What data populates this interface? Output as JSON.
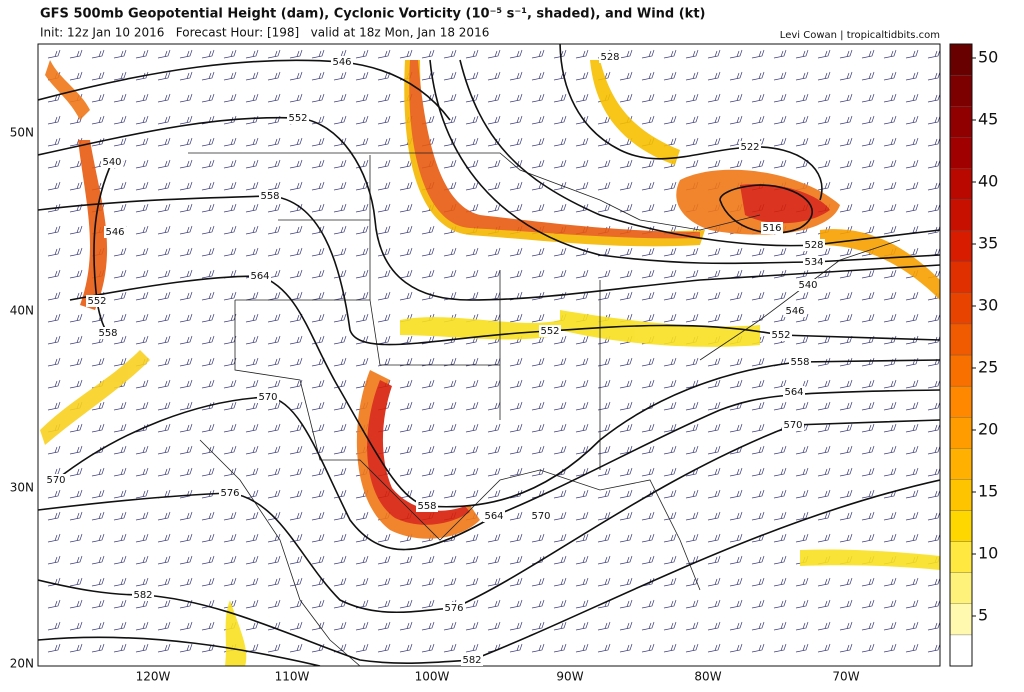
{
  "header": {
    "title": "GFS 500mb Geopotential Height (dam), Cyclonic Vorticity (10⁻⁵ s⁻¹, shaded), and Wind (kt)",
    "subtitle": "Init: 12z Jan 10 2016   Forecast Hour: [198]   valid at 18z Mon, Jan 18 2016",
    "credit": "Levi Cowan | tropicaltidbits.com"
  },
  "map": {
    "lat_labels": [
      "50N",
      "40N",
      "30N",
      "20N"
    ],
    "lon_labels": [
      "120W",
      "110W",
      "100W",
      "90W",
      "80W",
      "70W"
    ],
    "contour_labels": [
      546,
      552,
      558,
      564,
      570,
      576,
      582,
      570,
      552,
      558,
      546,
      540,
      528,
      522,
      516,
      528,
      534,
      540,
      546,
      552,
      558,
      564,
      570,
      552,
      558,
      564,
      570,
      576,
      582
    ]
  },
  "colorbar": {
    "ticks": [
      5,
      10,
      15,
      20,
      25,
      30,
      35,
      40,
      45,
      50
    ]
  }
}
